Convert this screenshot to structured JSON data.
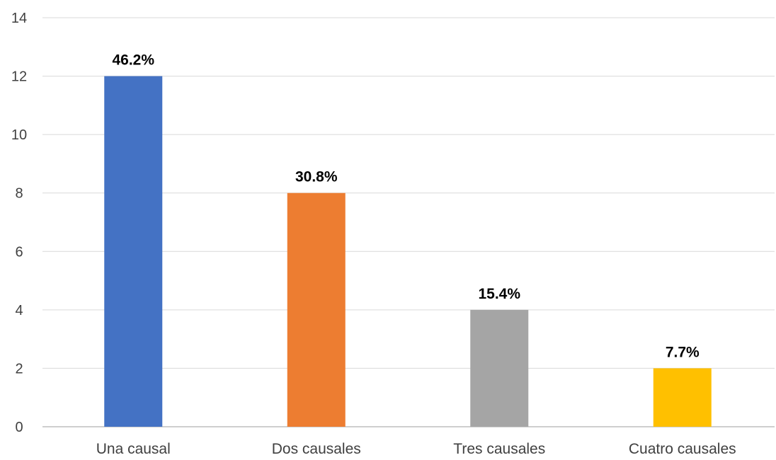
{
  "chart_data": {
    "type": "bar",
    "categories": [
      "Una causal",
      "Dos causales",
      "Tres causales",
      "Cuatro causales"
    ],
    "values": [
      12,
      8,
      4,
      2
    ],
    "data_labels": [
      "46.2%",
      "30.8%",
      "15.4%",
      "7.7%"
    ],
    "colors": [
      "#4472c4",
      "#ed7d31",
      "#a5a5a5",
      "#ffc000"
    ],
    "ylim": [
      0,
      14
    ],
    "yticks": [
      0,
      2,
      4,
      6,
      8,
      10,
      12,
      14
    ],
    "grid": true,
    "legend": "none",
    "title": "",
    "xlabel": "",
    "ylabel": ""
  }
}
